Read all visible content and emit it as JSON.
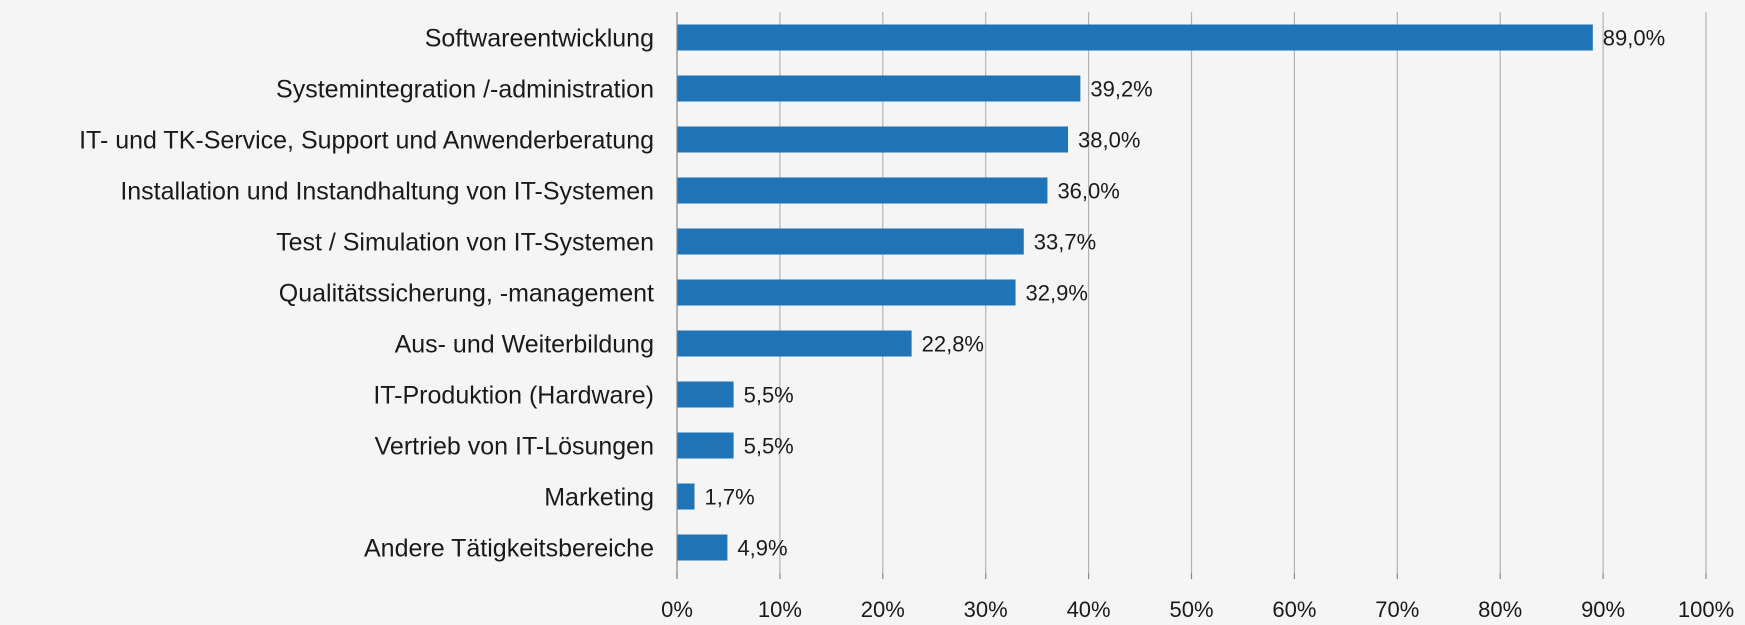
{
  "chart_data": {
    "type": "bar",
    "orientation": "horizontal",
    "categories": [
      "Softwareentwicklung",
      "Systemintegration /-administration",
      "IT- und TK-Service, Support und Anwenderberatung",
      "Installation und Instandhaltung von IT-Systemen",
      "Test / Simulation von IT-Systemen",
      "Qualitätssicherung, -management",
      "Aus- und Weiterbildung",
      "IT-Produktion (Hardware)",
      "Vertrieb von IT-Lösungen",
      "Marketing",
      "Andere Tätigkeitsbereiche"
    ],
    "values": [
      89.0,
      39.2,
      38.0,
      36.0,
      33.7,
      32.9,
      22.8,
      5.5,
      5.5,
      1.7,
      4.9
    ],
    "value_labels": [
      "89,0%",
      "39,2%",
      "38,0%",
      "36,0%",
      "33,7%",
      "32,9%",
      "22,8%",
      "5,5%",
      "5,5%",
      "1,7%",
      "4,9%"
    ],
    "xlim": [
      0,
      100
    ],
    "x_ticks": [
      "0%",
      "10%",
      "20%",
      "30%",
      "40%",
      "50%",
      "60%",
      "70%",
      "80%",
      "90%",
      "100%"
    ],
    "grid": "vertical",
    "bar_color": "#1f74b8",
    "grid_color": "#b4b4b4",
    "title": "",
    "xlabel": "",
    "ylabel": ""
  }
}
